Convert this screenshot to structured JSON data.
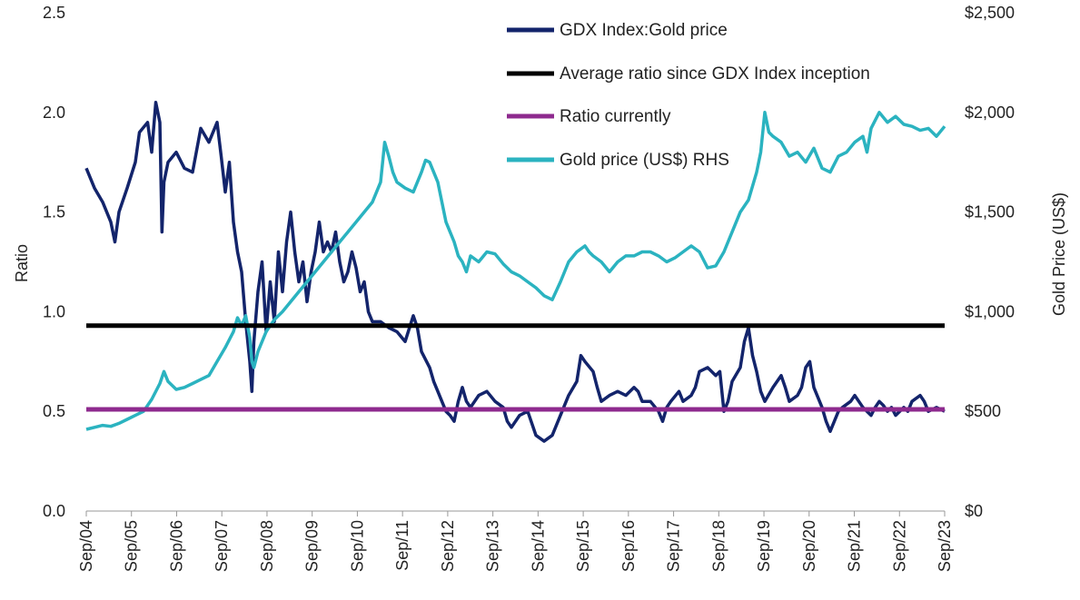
{
  "chart_data": {
    "type": "line",
    "x_labels": [
      "Sep/04",
      "Sep/05",
      "Sep/06",
      "Sep/07",
      "Sep/08",
      "Sep/09",
      "Sep/10",
      "Sep/11",
      "Sep/12",
      "Sep/13",
      "Sep/14",
      "Sep/15",
      "Sep/16",
      "Sep/17",
      "Sep/18",
      "Sep/19",
      "Sep/20",
      "Sep/21",
      "Sep/22",
      "Sep/23"
    ],
    "ylabel_left": "Ratio",
    "ylabel_right": "Gold Price (US$)",
    "y_left": {
      "min": 0,
      "max": 2.5,
      "ticks": [
        "0.0",
        "0.5",
        "1.0",
        "1.5",
        "2.0",
        "2.5"
      ]
    },
    "y_right": {
      "min": 0,
      "max": 2500,
      "ticks": [
        "$0",
        "$500",
        "$1,000",
        "$1,500",
        "$2,000",
        "$2,500"
      ]
    },
    "legend": [
      "GDX Index:Gold price",
      "Average ratio since GDX Index inception",
      "Ratio currently",
      "Gold price (US$) RHS"
    ],
    "colors": {
      "ratio": "#13246b",
      "average": "#000000",
      "current": "#8e2a8e",
      "gold": "#2bb3c0"
    },
    "average_ratio": 0.93,
    "current_ratio": 0.51,
    "series": [
      {
        "name": "GDX Index:Gold price",
        "axis": "left",
        "points": [
          [
            0,
            1.72
          ],
          [
            0.2,
            1.62
          ],
          [
            0.4,
            1.55
          ],
          [
            0.6,
            1.45
          ],
          [
            0.7,
            1.35
          ],
          [
            0.8,
            1.5
          ],
          [
            1.0,
            1.62
          ],
          [
            1.2,
            1.75
          ],
          [
            1.3,
            1.9
          ],
          [
            1.5,
            1.95
          ],
          [
            1.6,
            1.8
          ],
          [
            1.7,
            2.05
          ],
          [
            1.8,
            1.95
          ],
          [
            1.85,
            1.4
          ],
          [
            1.9,
            1.65
          ],
          [
            2.0,
            1.75
          ],
          [
            2.2,
            1.8
          ],
          [
            2.4,
            1.72
          ],
          [
            2.6,
            1.7
          ],
          [
            2.8,
            1.92
          ],
          [
            3.0,
            1.85
          ],
          [
            3.2,
            1.95
          ],
          [
            3.3,
            1.78
          ],
          [
            3.4,
            1.6
          ],
          [
            3.5,
            1.75
          ],
          [
            3.6,
            1.45
          ],
          [
            3.7,
            1.3
          ],
          [
            3.8,
            1.2
          ],
          [
            3.9,
            0.95
          ],
          [
            4.0,
            0.75
          ],
          [
            4.05,
            0.6
          ],
          [
            4.1,
            0.85
          ],
          [
            4.2,
            1.1
          ],
          [
            4.3,
            1.25
          ],
          [
            4.4,
            0.9
          ],
          [
            4.5,
            1.15
          ],
          [
            4.6,
            0.95
          ],
          [
            4.7,
            1.3
          ],
          [
            4.8,
            1.1
          ],
          [
            4.9,
            1.35
          ],
          [
            5.0,
            1.5
          ],
          [
            5.1,
            1.3
          ],
          [
            5.2,
            1.15
          ],
          [
            5.3,
            1.25
          ],
          [
            5.4,
            1.05
          ],
          [
            5.5,
            1.2
          ],
          [
            5.6,
            1.3
          ],
          [
            5.7,
            1.45
          ],
          [
            5.8,
            1.3
          ],
          [
            5.9,
            1.35
          ],
          [
            6.0,
            1.3
          ],
          [
            6.1,
            1.4
          ],
          [
            6.2,
            1.25
          ],
          [
            6.3,
            1.15
          ],
          [
            6.4,
            1.2
          ],
          [
            6.5,
            1.3
          ],
          [
            6.6,
            1.22
          ],
          [
            6.7,
            1.1
          ],
          [
            6.8,
            1.15
          ],
          [
            6.9,
            1.0
          ],
          [
            7.0,
            0.95
          ],
          [
            7.2,
            0.95
          ],
          [
            7.4,
            0.92
          ],
          [
            7.6,
            0.9
          ],
          [
            7.8,
            0.85
          ],
          [
            8.0,
            0.98
          ],
          [
            8.1,
            0.92
          ],
          [
            8.2,
            0.8
          ],
          [
            8.4,
            0.72
          ],
          [
            8.5,
            0.65
          ],
          [
            8.6,
            0.6
          ],
          [
            8.7,
            0.55
          ],
          [
            8.8,
            0.5
          ],
          [
            8.9,
            0.48
          ],
          [
            9.0,
            0.45
          ],
          [
            9.1,
            0.55
          ],
          [
            9.2,
            0.62
          ],
          [
            9.3,
            0.55
          ],
          [
            9.4,
            0.52
          ],
          [
            9.6,
            0.58
          ],
          [
            9.8,
            0.6
          ],
          [
            10.0,
            0.55
          ],
          [
            10.2,
            0.52
          ],
          [
            10.3,
            0.45
          ],
          [
            10.4,
            0.42
          ],
          [
            10.6,
            0.48
          ],
          [
            10.8,
            0.5
          ],
          [
            11.0,
            0.38
          ],
          [
            11.2,
            0.35
          ],
          [
            11.4,
            0.38
          ],
          [
            11.6,
            0.48
          ],
          [
            11.8,
            0.58
          ],
          [
            12.0,
            0.65
          ],
          [
            12.1,
            0.78
          ],
          [
            12.2,
            0.75
          ],
          [
            12.4,
            0.7
          ],
          [
            12.5,
            0.62
          ],
          [
            12.6,
            0.55
          ],
          [
            12.8,
            0.58
          ],
          [
            13.0,
            0.6
          ],
          [
            13.2,
            0.58
          ],
          [
            13.4,
            0.62
          ],
          [
            13.5,
            0.6
          ],
          [
            13.6,
            0.55
          ],
          [
            13.8,
            0.55
          ],
          [
            14.0,
            0.5
          ],
          [
            14.1,
            0.45
          ],
          [
            14.2,
            0.52
          ],
          [
            14.3,
            0.55
          ],
          [
            14.5,
            0.6
          ],
          [
            14.6,
            0.55
          ],
          [
            14.8,
            0.58
          ],
          [
            14.9,
            0.62
          ],
          [
            15.0,
            0.7
          ],
          [
            15.2,
            0.72
          ],
          [
            15.4,
            0.68
          ],
          [
            15.5,
            0.7
          ],
          [
            15.6,
            0.5
          ],
          [
            15.7,
            0.55
          ],
          [
            15.8,
            0.65
          ],
          [
            16.0,
            0.72
          ],
          [
            16.1,
            0.85
          ],
          [
            16.2,
            0.92
          ],
          [
            16.3,
            0.78
          ],
          [
            16.4,
            0.7
          ],
          [
            16.5,
            0.6
          ],
          [
            16.6,
            0.55
          ],
          [
            16.8,
            0.62
          ],
          [
            17.0,
            0.68
          ],
          [
            17.1,
            0.62
          ],
          [
            17.2,
            0.55
          ],
          [
            17.4,
            0.58
          ],
          [
            17.5,
            0.62
          ],
          [
            17.6,
            0.72
          ],
          [
            17.7,
            0.75
          ],
          [
            17.8,
            0.62
          ],
          [
            18.0,
            0.52
          ],
          [
            18.1,
            0.45
          ],
          [
            18.2,
            0.4
          ],
          [
            18.3,
            0.45
          ],
          [
            18.4,
            0.5
          ],
          [
            18.5,
            0.52
          ],
          [
            18.7,
            0.55
          ],
          [
            18.8,
            0.58
          ],
          [
            18.9,
            0.55
          ],
          [
            19.0,
            0.52
          ],
          [
            19.1,
            0.5
          ],
          [
            19.2,
            0.48
          ],
          [
            19.3,
            0.52
          ],
          [
            19.4,
            0.55
          ],
          [
            19.5,
            0.53
          ],
          [
            19.6,
            0.5
          ],
          [
            19.7,
            0.52
          ],
          [
            19.8,
            0.48
          ],
          [
            19.9,
            0.5
          ],
          [
            20.0,
            0.52
          ],
          [
            20.1,
            0.5
          ],
          [
            20.2,
            0.55
          ],
          [
            20.4,
            0.58
          ],
          [
            20.5,
            0.55
          ],
          [
            20.6,
            0.5
          ],
          [
            20.8,
            0.52
          ],
          [
            21.0,
            0.5
          ]
        ]
      },
      {
        "name": "Gold price (US$) RHS",
        "axis": "right",
        "points": [
          [
            0,
            410
          ],
          [
            0.2,
            420
          ],
          [
            0.4,
            430
          ],
          [
            0.6,
            425
          ],
          [
            0.8,
            440
          ],
          [
            1.0,
            460
          ],
          [
            1.2,
            480
          ],
          [
            1.4,
            500
          ],
          [
            1.6,
            560
          ],
          [
            1.8,
            640
          ],
          [
            1.9,
            700
          ],
          [
            2.0,
            650
          ],
          [
            2.2,
            610
          ],
          [
            2.4,
            620
          ],
          [
            2.6,
            640
          ],
          [
            2.8,
            660
          ],
          [
            3.0,
            680
          ],
          [
            3.2,
            750
          ],
          [
            3.4,
            820
          ],
          [
            3.6,
            900
          ],
          [
            3.7,
            970
          ],
          [
            3.8,
            930
          ],
          [
            3.9,
            980
          ],
          [
            4.0,
            870
          ],
          [
            4.05,
            750
          ],
          [
            4.1,
            720
          ],
          [
            4.2,
            800
          ],
          [
            4.4,
            900
          ],
          [
            4.6,
            960
          ],
          [
            4.8,
            1000
          ],
          [
            5.0,
            1050
          ],
          [
            5.2,
            1100
          ],
          [
            5.4,
            1150
          ],
          [
            5.6,
            1200
          ],
          [
            5.8,
            1250
          ],
          [
            6.0,
            1300
          ],
          [
            6.2,
            1350
          ],
          [
            6.4,
            1400
          ],
          [
            6.6,
            1450
          ],
          [
            6.8,
            1500
          ],
          [
            7.0,
            1550
          ],
          [
            7.2,
            1650
          ],
          [
            7.3,
            1850
          ],
          [
            7.4,
            1780
          ],
          [
            7.5,
            1700
          ],
          [
            7.6,
            1650
          ],
          [
            7.8,
            1620
          ],
          [
            8.0,
            1600
          ],
          [
            8.2,
            1700
          ],
          [
            8.3,
            1760
          ],
          [
            8.4,
            1750
          ],
          [
            8.5,
            1700
          ],
          [
            8.6,
            1650
          ],
          [
            8.7,
            1550
          ],
          [
            8.8,
            1450
          ],
          [
            9.0,
            1350
          ],
          [
            9.1,
            1280
          ],
          [
            9.2,
            1250
          ],
          [
            9.3,
            1200
          ],
          [
            9.4,
            1280
          ],
          [
            9.6,
            1250
          ],
          [
            9.8,
            1300
          ],
          [
            10.0,
            1290
          ],
          [
            10.2,
            1240
          ],
          [
            10.4,
            1200
          ],
          [
            10.6,
            1180
          ],
          [
            10.8,
            1150
          ],
          [
            11.0,
            1120
          ],
          [
            11.2,
            1080
          ],
          [
            11.4,
            1060
          ],
          [
            11.6,
            1150
          ],
          [
            11.8,
            1250
          ],
          [
            12.0,
            1300
          ],
          [
            12.2,
            1330
          ],
          [
            12.3,
            1300
          ],
          [
            12.4,
            1280
          ],
          [
            12.6,
            1250
          ],
          [
            12.8,
            1200
          ],
          [
            13.0,
            1250
          ],
          [
            13.2,
            1280
          ],
          [
            13.4,
            1280
          ],
          [
            13.6,
            1300
          ],
          [
            13.8,
            1300
          ],
          [
            14.0,
            1280
          ],
          [
            14.2,
            1250
          ],
          [
            14.4,
            1270
          ],
          [
            14.6,
            1300
          ],
          [
            14.8,
            1330
          ],
          [
            15.0,
            1300
          ],
          [
            15.2,
            1220
          ],
          [
            15.4,
            1230
          ],
          [
            15.6,
            1300
          ],
          [
            15.8,
            1400
          ],
          [
            16.0,
            1500
          ],
          [
            16.2,
            1560
          ],
          [
            16.4,
            1700
          ],
          [
            16.5,
            1800
          ],
          [
            16.6,
            2000
          ],
          [
            16.7,
            1900
          ],
          [
            16.8,
            1880
          ],
          [
            17.0,
            1850
          ],
          [
            17.2,
            1780
          ],
          [
            17.4,
            1800
          ],
          [
            17.6,
            1750
          ],
          [
            17.8,
            1820
          ],
          [
            18.0,
            1720
          ],
          [
            18.2,
            1700
          ],
          [
            18.4,
            1780
          ],
          [
            18.6,
            1800
          ],
          [
            18.8,
            1850
          ],
          [
            19.0,
            1880
          ],
          [
            19.1,
            1800
          ],
          [
            19.2,
            1920
          ],
          [
            19.4,
            2000
          ],
          [
            19.6,
            1950
          ],
          [
            19.8,
            1980
          ],
          [
            20.0,
            1940
          ],
          [
            20.2,
            1930
          ],
          [
            20.4,
            1910
          ],
          [
            20.6,
            1920
          ],
          [
            20.8,
            1880
          ],
          [
            21.0,
            1930
          ]
        ]
      }
    ]
  }
}
